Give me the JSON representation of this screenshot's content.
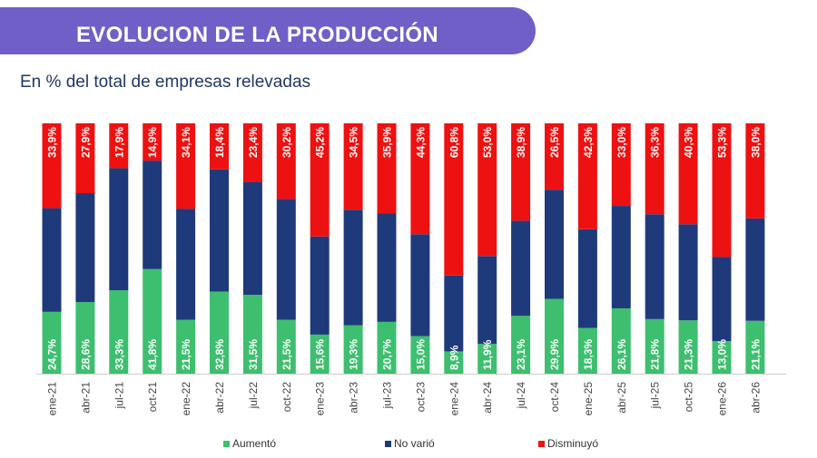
{
  "header": {
    "title": "EVOLUCION DE LA PRODUCCIÓN",
    "subtitle": "En % del total de empresas relevadas"
  },
  "colors": {
    "aumento": "#3dbf6f",
    "no_vario": "#1f3a7a",
    "disminuyo": "#ee1111",
    "banner": "#6f5fc7"
  },
  "chart_data": {
    "type": "bar",
    "stacked": true,
    "categories": [
      "ene-21",
      "abr-21",
      "jul-21",
      "oct-21",
      "ene-22",
      "abr-22",
      "jul-22",
      "oct-22",
      "ene-23",
      "abr-23",
      "jul-23",
      "oct-23",
      "ene-24",
      "abr-24",
      "jul-24",
      "oct-24",
      "ene-25",
      "abr-25",
      "jul-25",
      "oct-25",
      "ene-26",
      "abr-26"
    ],
    "series": [
      {
        "name": "Aumentó",
        "values": [
          24.7,
          28.6,
          33.3,
          41.8,
          21.5,
          32.8,
          31.5,
          21.5,
          15.6,
          19.3,
          20.7,
          15.0,
          8.9,
          11.9,
          23.1,
          29.9,
          18.3,
          26.1,
          21.8,
          21.3,
          13.0,
          21.1
        ],
        "labels": [
          "24,7%",
          "28,6%",
          "33,3%",
          "41,8%",
          "21,5%",
          "32,8%",
          "31,5%",
          "21,5%",
          "15,6%",
          "19,3%",
          "20,7%",
          "15,0%",
          "8,9%",
          "11,9%",
          "23,1%",
          "29,9%",
          "18,3%",
          "26,1%",
          "21,8%",
          "21,3%",
          "13,0%",
          "21,1%"
        ]
      },
      {
        "name": "No varió",
        "values": [
          41.4,
          43.5,
          48.8,
          43.3,
          44.4,
          48.8,
          45.1,
          48.3,
          39.2,
          46.2,
          43.4,
          40.7,
          30.3,
          35.1,
          38.0,
          43.6,
          39.4,
          40.9,
          41.9,
          38.4,
          33.7,
          40.9
        ]
      },
      {
        "name": "Disminuyó",
        "values": [
          33.9,
          27.9,
          17.9,
          14.9,
          34.1,
          18.4,
          23.4,
          30.2,
          45.2,
          34.5,
          35.9,
          44.3,
          60.8,
          53.0,
          38.9,
          26.5,
          42.3,
          33.0,
          36.3,
          40.3,
          53.3,
          38.0
        ],
        "labels": [
          "33,9%",
          "27,9%",
          "17,9%",
          "14,9%",
          "34,1%",
          "18,4%",
          "23,4%",
          "30,2%",
          "45,2%",
          "34,5%",
          "35,9%",
          "44,3%",
          "60,8%",
          "53,0%",
          "38,9%",
          "26,5%",
          "42,3%",
          "33,0%",
          "36,3%",
          "40,3%",
          "53,3%",
          "38,0%"
        ]
      }
    ],
    "ylim": [
      0,
      100
    ],
    "legend_position": "bottom",
    "legend": [
      "Aumentó",
      "No varió",
      "Disminuyó"
    ],
    "grid": false
  }
}
